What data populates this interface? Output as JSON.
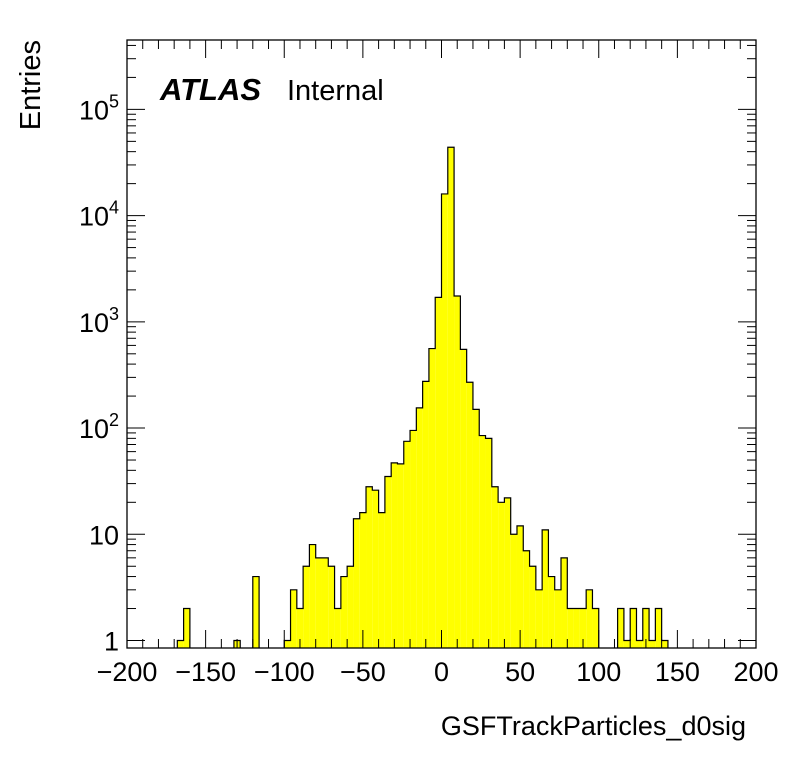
{
  "chart_data": {
    "type": "histogram",
    "xlabel": "GSFTrackParticles_d0sig",
    "ylabel": "Entries",
    "label_bold": "ATLAS",
    "label_normal": "Internal",
    "xlim": [
      -200,
      200
    ],
    "ylim": [
      0.85,
      450000
    ],
    "y_scale": "log",
    "bin_width": 4,
    "fill_color": "#ffff00",
    "line_color": "#000000",
    "x_ticks": [
      -200,
      -150,
      -100,
      -50,
      0,
      50,
      100,
      150,
      200
    ],
    "x_tick_labels": [
      "−200",
      "−150",
      "−100",
      "−50",
      "0",
      "50",
      "100",
      "150",
      "200"
    ],
    "y_ticks": [
      {
        "value": 1,
        "base": "1",
        "exp": ""
      },
      {
        "value": 10,
        "base": "10",
        "exp": ""
      },
      {
        "value": 100,
        "base": "10",
        "exp": "2"
      },
      {
        "value": 1000,
        "base": "10",
        "exp": "3"
      },
      {
        "value": 10000,
        "base": "10",
        "exp": "4"
      },
      {
        "value": 100000,
        "base": "10",
        "exp": "5"
      }
    ],
    "bins": [
      {
        "x": -168,
        "y": 1
      },
      {
        "x": -164,
        "y": 2
      },
      {
        "x": -132,
        "y": 1
      },
      {
        "x": -120,
        "y": 4
      },
      {
        "x": -100,
        "y": 1
      },
      {
        "x": -96,
        "y": 3
      },
      {
        "x": -92,
        "y": 2
      },
      {
        "x": -88,
        "y": 5
      },
      {
        "x": -84,
        "y": 8
      },
      {
        "x": -80,
        "y": 6
      },
      {
        "x": -76,
        "y": 6
      },
      {
        "x": -72,
        "y": 5
      },
      {
        "x": -68,
        "y": 2
      },
      {
        "x": -64,
        "y": 4
      },
      {
        "x": -60,
        "y": 5
      },
      {
        "x": -56,
        "y": 14
      },
      {
        "x": -52,
        "y": 16
      },
      {
        "x": -48,
        "y": 28
      },
      {
        "x": -44,
        "y": 26
      },
      {
        "x": -40,
        "y": 16
      },
      {
        "x": -36,
        "y": 35
      },
      {
        "x": -32,
        "y": 47
      },
      {
        "x": -28,
        "y": 46
      },
      {
        "x": -24,
        "y": 75
      },
      {
        "x": -20,
        "y": 95
      },
      {
        "x": -16,
        "y": 155
      },
      {
        "x": -12,
        "y": 275
      },
      {
        "x": -8,
        "y": 560
      },
      {
        "x": -4,
        "y": 1700
      },
      {
        "x": 0,
        "y": 16000
      },
      {
        "x": 4,
        "y": 44000
      },
      {
        "x": 8,
        "y": 1750
      },
      {
        "x": 12,
        "y": 550
      },
      {
        "x": 16,
        "y": 270
      },
      {
        "x": 20,
        "y": 150
      },
      {
        "x": 24,
        "y": 85
      },
      {
        "x": 28,
        "y": 80
      },
      {
        "x": 32,
        "y": 28
      },
      {
        "x": 36,
        "y": 20
      },
      {
        "x": 40,
        "y": 22
      },
      {
        "x": 44,
        "y": 10
      },
      {
        "x": 48,
        "y": 12
      },
      {
        "x": 52,
        "y": 7
      },
      {
        "x": 56,
        "y": 5
      },
      {
        "x": 60,
        "y": 3
      },
      {
        "x": 64,
        "y": 11
      },
      {
        "x": 68,
        "y": 4
      },
      {
        "x": 72,
        "y": 3
      },
      {
        "x": 76,
        "y": 6
      },
      {
        "x": 80,
        "y": 2
      },
      {
        "x": 84,
        "y": 2
      },
      {
        "x": 88,
        "y": 2
      },
      {
        "x": 92,
        "y": 3
      },
      {
        "x": 96,
        "y": 2
      },
      {
        "x": 112,
        "y": 2
      },
      {
        "x": 116,
        "y": 1
      },
      {
        "x": 120,
        "y": 2
      },
      {
        "x": 124,
        "y": 1
      },
      {
        "x": 128,
        "y": 2
      },
      {
        "x": 132,
        "y": 1
      },
      {
        "x": 136,
        "y": 2
      },
      {
        "x": 140,
        "y": 1
      }
    ]
  }
}
